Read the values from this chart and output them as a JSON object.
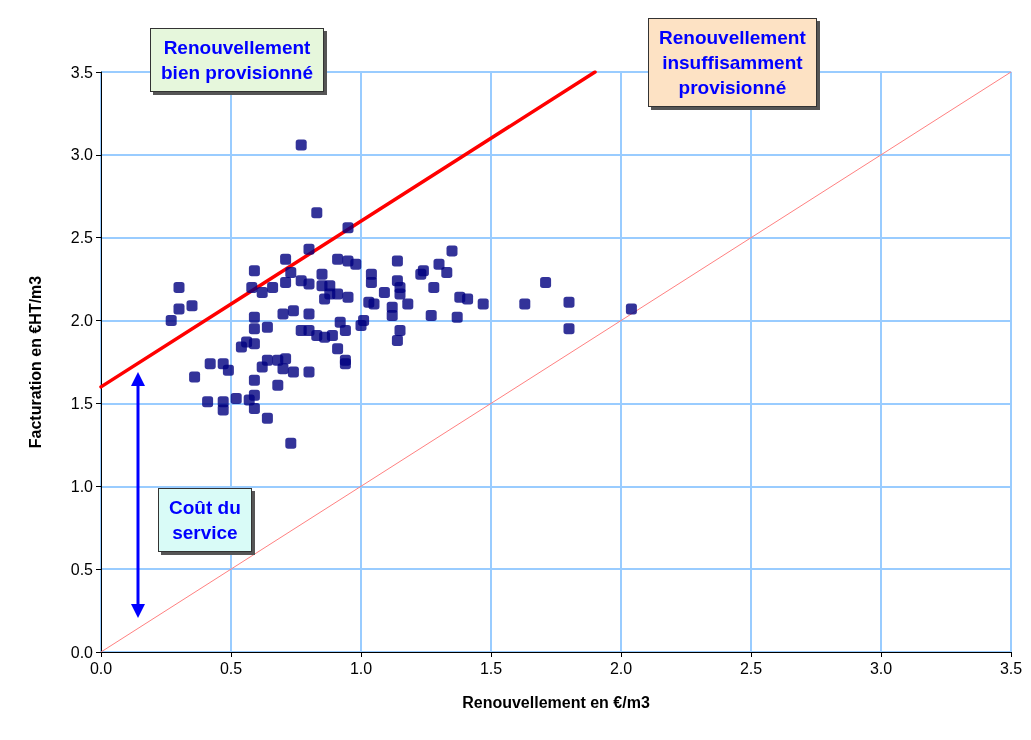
{
  "chart_data": {
    "type": "scatter",
    "xlabel": "Renouvellement en €/m3",
    "ylabel": "Facturation en €HT/m3",
    "xlim": [
      0,
      3.5
    ],
    "ylim": [
      0,
      3.5
    ],
    "xticks": [
      {
        "value": 0,
        "label": "0.0"
      },
      {
        "value": 0.5,
        "label": "0.5"
      },
      {
        "value": 1,
        "label": "1.0"
      },
      {
        "value": 1.5,
        "label": "1.5"
      },
      {
        "value": 2,
        "label": "2.0"
      },
      {
        "value": 2.5,
        "label": "2.5"
      },
      {
        "value": 3,
        "label": "3.0"
      },
      {
        "value": 3.5,
        "label": "3.5"
      }
    ],
    "yticks": [
      {
        "value": 0,
        "label": "0.0"
      },
      {
        "value": 0.5,
        "label": "0.5"
      },
      {
        "value": 1,
        "label": "1.0"
      },
      {
        "value": 1.5,
        "label": "1.5"
      },
      {
        "value": 2,
        "label": "2.0"
      },
      {
        "value": 2.5,
        "label": "2.5"
      },
      {
        "value": 3,
        "label": "3.0"
      },
      {
        "value": 3.5,
        "label": "3.5"
      }
    ],
    "grid": true,
    "annotations": [
      "Renouvellement\nbien provisionné",
      "Renouvellement\ninsuffisamment\nprovisionné",
      "Coût du\nservice"
    ],
    "series": [
      {
        "marker": "square",
        "color": "#000080",
        "x": [
          0.77,
          0.83,
          0.95,
          0.8,
          0.71,
          0.59,
          0.73,
          0.58,
          0.62,
          0.66,
          0.71,
          0.77,
          0.8,
          0.85,
          0.85,
          0.88,
          0.88,
          0.86,
          0.91,
          0.95,
          0.91,
          0.95,
          0.98,
          1.04,
          1.04,
          1.09,
          1.03,
          1.05,
          0.3,
          0.3,
          0.35,
          0.27,
          0.36,
          0.42,
          0.47,
          0.49,
          0.41,
          0.47,
          0.47,
          0.52,
          0.57,
          0.59,
          0.59,
          0.64,
          0.73,
          0.59,
          0.68,
          0.62,
          0.64,
          0.68,
          0.71,
          0.7,
          0.74,
          0.8,
          0.54,
          0.56,
          0.59,
          0.59,
          0.64,
          0.59,
          0.7,
          0.74,
          0.8,
          0.77,
          0.8,
          0.83,
          0.86,
          0.89,
          0.91,
          0.92,
          0.94,
          0.94,
          0.94,
          1.01,
          1.0,
          1.12,
          1.12,
          1.14,
          1.14,
          1.15,
          1.15,
          1.18,
          1.15,
          1.14,
          1.24,
          1.23,
          1.28,
          1.27,
          1.3,
          1.33,
          1.35,
          1.37,
          1.38,
          1.41,
          1.47,
          1.63,
          1.71,
          1.8,
          1.8,
          2.04
        ],
        "values": [
          3.06,
          2.65,
          2.56,
          2.43,
          2.37,
          2.3,
          2.29,
          2.2,
          2.17,
          2.2,
          2.23,
          2.24,
          2.22,
          2.28,
          2.21,
          2.21,
          2.16,
          2.13,
          2.16,
          2.14,
          2.37,
          2.36,
          2.34,
          2.28,
          2.23,
          2.17,
          2.11,
          2.1,
          2.2,
          2.07,
          2.09,
          2.0,
          1.66,
          1.74,
          1.74,
          1.7,
          1.51,
          1.51,
          1.46,
          1.53,
          1.52,
          1.55,
          1.47,
          1.41,
          1.26,
          1.64,
          1.61,
          1.72,
          1.76,
          1.76,
          1.77,
          1.71,
          1.69,
          1.69,
          1.84,
          1.87,
          1.86,
          1.95,
          1.96,
          2.02,
          2.04,
          2.06,
          2.04,
          1.94,
          1.94,
          1.91,
          1.9,
          1.91,
          1.83,
          1.99,
          1.94,
          1.76,
          1.74,
          2.0,
          1.97,
          2.08,
          2.03,
          2.36,
          2.24,
          2.2,
          2.16,
          2.1,
          1.94,
          1.88,
          2.3,
          2.28,
          2.2,
          2.03,
          2.34,
          2.29,
          2.42,
          2.02,
          2.14,
          2.13,
          2.1,
          2.1,
          2.23,
          2.11,
          1.95,
          2.07
        ]
      },
      {
        "type": "line",
        "marker": "none",
        "color": "#ff0000",
        "x": [
          0,
          1.9
        ],
        "values": [
          1.6,
          3.5
        ]
      },
      {
        "type": "line",
        "marker": "none",
        "color": "#ff8080",
        "x": [
          0,
          3.5
        ],
        "values": [
          0,
          3.5
        ]
      }
    ]
  }
}
